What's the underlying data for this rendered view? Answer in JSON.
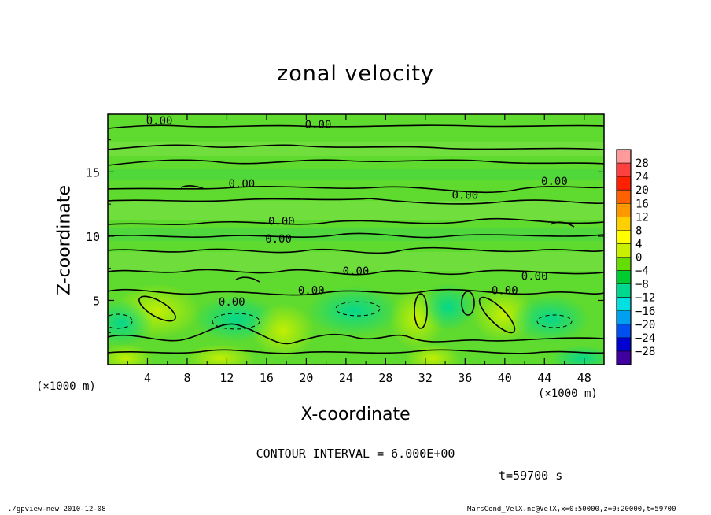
{
  "chart_data": {
    "type": "heatmap",
    "title": "zonal velocity",
    "xlabel": "X-coordinate",
    "ylabel": "Z-coordinate",
    "x_unit": "(×1000 m)",
    "xlim": [
      0,
      50
    ],
    "ylim": [
      0,
      19.5
    ],
    "x_ticks": [
      "4",
      "8",
      "12",
      "16",
      "20",
      "24",
      "28",
      "32",
      "36",
      "40",
      "44",
      "48"
    ],
    "y_ticks": [
      "5",
      "10",
      "15"
    ],
    "colorbar": {
      "levels": [
        "28",
        "24",
        "20",
        "16",
        "12",
        "8",
        "4",
        "0",
        "−4",
        "−8",
        "−12",
        "−16",
        "−20",
        "−24",
        "−28"
      ],
      "colors": [
        "#ff9a9a",
        "#ff4040",
        "#ff2000",
        "#ff6000",
        "#ff9800",
        "#ffd000",
        "#ffff00",
        "#c8f000",
        "#66dd00",
        "#00cc30",
        "#00d890",
        "#00e0e0",
        "#00a0f0",
        "#0050f0",
        "#0000d0",
        "#4000a0"
      ]
    },
    "contour_labels": [
      {
        "text": "0.00",
        "x": 5.2,
        "z": 19.0
      },
      {
        "text": "0.00",
        "x": 21.2,
        "z": 18.7
      },
      {
        "text": "0.00",
        "x": 13.5,
        "z": 14.1
      },
      {
        "text": "0.00",
        "x": 45.0,
        "z": 14.3
      },
      {
        "text": "0.00",
        "x": 36.0,
        "z": 13.2
      },
      {
        "text": "0.00",
        "x": 17.5,
        "z": 11.2
      },
      {
        "text": "0.00",
        "x": 17.2,
        "z": 9.8
      },
      {
        "text": "0.00",
        "x": 25.0,
        "z": 7.3
      },
      {
        "text": "0.00",
        "x": 43.0,
        "z": 6.9
      },
      {
        "text": "0.00",
        "x": 40.0,
        "z": 5.8
      },
      {
        "text": "0.00",
        "x": 20.5,
        "z": 5.8
      },
      {
        "text": "0.00",
        "x": 12.5,
        "z": 4.9
      }
    ],
    "contour_interval": "CONTOUR INTERVAL = 6.000E+00",
    "time": "t=59700 s"
  },
  "footer": {
    "left": "./gpview-new  2010-12-08",
    "right": "MarsCond_VelX.nc@VelX,x=0:50000,z=0:20000,t=59700"
  }
}
